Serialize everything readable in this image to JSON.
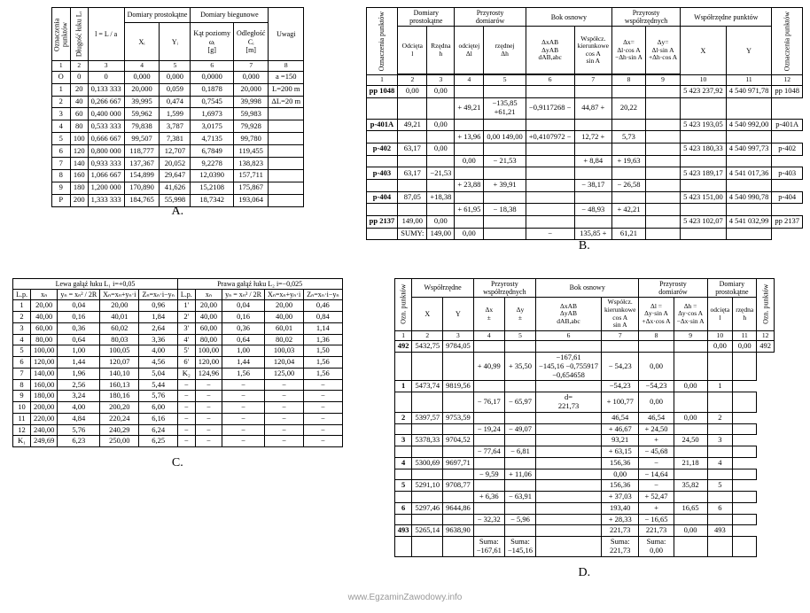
{
  "footer": "www.EgzaminZawodowy.info",
  "labels": {
    "A": "A.",
    "B": "B.",
    "C": "C.",
    "D": "D."
  },
  "A": {
    "head": {
      "ozn": "Oznaczenia\npunktów",
      "dlugosc": "Długość łuku Lᵢ",
      "l_formula": "l = L / a",
      "dom_prost": "Domiary prostokątne",
      "dom_bieg": "Domiary biegunowe",
      "X": "Xᵢ",
      "Y": "Yᵢ",
      "kat": "Kąt poziomy\nωᵢ\n[g]",
      "odl": "Odległość\nCᵢ\n[m]",
      "uwagi": "Uwagi"
    },
    "numrow": [
      "1",
      "2",
      "3",
      "4",
      "5",
      "6",
      "7",
      "8"
    ],
    "rows": [
      [
        "O",
        "0",
        "0",
        "0,000",
        "0,000",
        "0,0000",
        "0,000",
        "a =150"
      ],
      [
        "1",
        "20",
        "0,133 333",
        "20,000",
        "0,059",
        "0,1878",
        "20,000",
        "L=200 m"
      ],
      [
        "2",
        "40",
        "0,266 667",
        "39,995",
        "0,474",
        "0,7545",
        "39,998",
        "ΔL=20 m"
      ],
      [
        "3",
        "60",
        "0,400 000",
        "59,962",
        "1,599",
        "1,6973",
        "59,983",
        ""
      ],
      [
        "4",
        "80",
        "0,533 333",
        "79,838",
        "3,787",
        "3,0175",
        "79,928",
        ""
      ],
      [
        "5",
        "100",
        "0,666 667",
        "99,507",
        "7,381",
        "4,7135",
        "99,780",
        ""
      ],
      [
        "6",
        "120",
        "0,800 000",
        "118,777",
        "12,707",
        "6,7849",
        "119,455",
        ""
      ],
      [
        "7",
        "140",
        "0,933 333",
        "137,367",
        "20,052",
        "9,2278",
        "138,823",
        ""
      ],
      [
        "8",
        "160",
        "1,066 667",
        "154,899",
        "29,647",
        "12,0390",
        "157,711",
        ""
      ],
      [
        "9",
        "180",
        "1,200 000",
        "170,890",
        "41,626",
        "15,2108",
        "175,867",
        ""
      ],
      [
        "P",
        "200",
        "1,333 333",
        "184,765",
        "55,998",
        "18,7342",
        "193,064",
        ""
      ]
    ]
  },
  "B": {
    "head": {
      "ozn": "Oznaczenia punktów",
      "dom_prost": "Domiary\nprostokątne",
      "przy_dom": "Przyrosty\ndomiarów",
      "bok": "Bok osnowy",
      "przy_wsp": "Przyrosty\nwspółrzędnych",
      "wsp": "Współrzędne punktów",
      "odc": "Odcięta\nl",
      "rze": "Rzędna\nh",
      "dodc": "odciętej\nΔl",
      "drze": "rzędnej\nΔh",
      "dxab": "ΔxAB\nΔyAB\ndAB,abc",
      "wspk": "Współcz.\nkierunkowe\ncos A\nsin A",
      "dx": "Δx=\nΔl·cos A\n−Δh·sin A",
      "dy": "Δy=\nΔl·sin A\n+Δh·cos A",
      "X": "X",
      "Y": "Y"
    },
    "numrow": [
      "1",
      "2",
      "3",
      "4",
      "5",
      "6",
      "7",
      "8",
      "9",
      "10",
      "11",
      "12"
    ],
    "rows": [
      [
        "pp 1048",
        "0,00",
        "0,00",
        "",
        "",
        "",
        "",
        "",
        "",
        "5 423 237,92",
        "4 540 971,78",
        "pp 1048"
      ],
      [
        "",
        "",
        "",
        "+",
        "49,21",
        "",
        "−135,85\n+61,21",
        "−0,9117268",
        "−",
        "44,87",
        "+",
        "20,22",
        "",
        "",
        ""
      ],
      [
        "p-401A",
        "49,21",
        "0,00",
        "",
        "",
        "",
        "",
        "",
        "",
        "5 423 193,05",
        "4 540 992,00",
        "p-401A"
      ],
      [
        "",
        "",
        "",
        "+",
        "13,96",
        "0,00",
        "149,00",
        "+0,4107972",
        "−",
        "12,72",
        "+",
        "5,73",
        "",
        "",
        ""
      ],
      [
        "p-402",
        "63,17",
        "0,00",
        "",
        "",
        "",
        "",
        "",
        "",
        "5 423 180,33",
        "4 540 997,73",
        "p-402"
      ],
      [
        "",
        "",
        "",
        "",
        "0,00",
        "−",
        "21,53",
        "",
        "",
        "+",
        "8,84",
        "+",
        "19,63",
        "",
        "",
        ""
      ],
      [
        "p-403",
        "63,17",
        "−21,53",
        "",
        "",
        "",
        "",
        "",
        "",
        "5 423 189,17",
        "4 541 017,36",
        "p-403"
      ],
      [
        "",
        "",
        "",
        "+",
        "23,88",
        "+",
        "39,91",
        "",
        "",
        "−",
        "38,17",
        "−",
        "26,58",
        "",
        "",
        ""
      ],
      [
        "p-404",
        "87,05",
        "+18,38",
        "",
        "",
        "",
        "",
        "",
        "",
        "5 423 151,00",
        "4 540 990,78",
        "p-404"
      ],
      [
        "",
        "",
        "",
        "+",
        "61,95",
        "−",
        "18,38",
        "",
        "",
        "−",
        "48,93",
        "+",
        "42,21",
        "",
        "",
        ""
      ],
      [
        "pp 2137",
        "149,00",
        "0,00",
        "",
        "",
        "",
        "",
        "",
        "",
        "5 423 102,07",
        "4 541 032,99",
        "pp 2137"
      ],
      [
        "",
        "SUMY:",
        "149,00",
        "0,00",
        "",
        "",
        "",
        "",
        "−",
        "135,85",
        "+",
        "61,21",
        "",
        "",
        ""
      ]
    ]
  },
  "C": {
    "head": {
      "lewa": "Lewa gałąź łuku L₁   i=+0,05",
      "prawa": "Prawa gałąź łuku L₂   i=−0,025",
      "lp": "L.p.",
      "xn": "xₙ",
      "yn": "yₙ = xₙ² / 2R",
      "Xn": "Xₙ=xₙ+yₙ·i",
      "Zn": "Zₙ=xₙ·i−yₙ"
    },
    "rows": [
      [
        "1",
        "20,00",
        "0,04",
        "20,00",
        "0,96",
        "1'",
        "20,00",
        "0,04",
        "20,00",
        "0,46"
      ],
      [
        "2",
        "40,00",
        "0,16",
        "40,01",
        "1,84",
        "2'",
        "40,00",
        "0,16",
        "40,00",
        "0,84"
      ],
      [
        "3",
        "60,00",
        "0,36",
        "60,02",
        "2,64",
        "3'",
        "60,00",
        "0,36",
        "60,01",
        "1,14"
      ],
      [
        "4",
        "80,00",
        "0,64",
        "80,03",
        "3,36",
        "4'",
        "80,00",
        "0,64",
        "80,02",
        "1,36"
      ],
      [
        "5",
        "100,00",
        "1,00",
        "100,05",
        "4,00",
        "5'",
        "100,00",
        "1,00",
        "100,03",
        "1,50"
      ],
      [
        "6",
        "120,00",
        "1,44",
        "120,07",
        "4,56",
        "6'",
        "120,00",
        "1,44",
        "120,04",
        "1,56"
      ],
      [
        "7",
        "140,00",
        "1,96",
        "140,10",
        "5,04",
        "K₂",
        "124,96",
        "1,56",
        "125,00",
        "1,56"
      ],
      [
        "8",
        "160,00",
        "2,56",
        "160,13",
        "5,44",
        "−",
        "−",
        "−",
        "−",
        "−"
      ],
      [
        "9",
        "180,00",
        "3,24",
        "180,16",
        "5,76",
        "−",
        "−",
        "−",
        "−",
        "−"
      ],
      [
        "10",
        "200,00",
        "4,00",
        "200,20",
        "6,00",
        "−",
        "−",
        "−",
        "−",
        "−"
      ],
      [
        "11",
        "220,00",
        "4,84",
        "220,24",
        "6,16",
        "−",
        "−",
        "−",
        "−",
        "−"
      ],
      [
        "12",
        "240,00",
        "5,76",
        "240,29",
        "6,24",
        "−",
        "−",
        "−",
        "−",
        "−"
      ],
      [
        "K₁",
        "249,69",
        "6,23",
        "250,00",
        "6,25",
        "−",
        "−",
        "−",
        "−",
        "−"
      ]
    ]
  },
  "D": {
    "head": {
      "ozn": "Ozn. punktów",
      "wsp": "Współrzędne",
      "przy_wsp": "Przyrosty\nwspółrzędnych",
      "bok": "Bok osnowy",
      "przy_dom": "Przyrosty\ndomiarów",
      "dom_prost": "Domiary\nprostokątne",
      "X": "X",
      "Y": "Y",
      "dx": "Δx\n±",
      "dy": "Δy\n±",
      "dxab": "ΔxAB\nΔyAB\ndAB,abc",
      "wspk": "Współcz.\nkierunkowe\ncos A\nsin A",
      "dl": "Δl =\nΔy·sin A\n+Δx·cos A",
      "dh": "Δh =\nΔy·cos A\n−Δx·sin A",
      "odc": "odcięta\nl",
      "rze": "rzędna\nh"
    },
    "numrow": [
      "1",
      "2",
      "3",
      "4",
      "5",
      "6",
      "7",
      "8",
      "9",
      "10",
      "11",
      "12"
    ],
    "rows": [
      [
        "492",
        "5432,75",
        "9784,05",
        "",
        "",
        "",
        "",
        "",
        "",
        "0,00",
        "0,00",
        "492"
      ],
      [
        "",
        "",
        "",
        "+",
        "40,99",
        "+",
        "35,50",
        "−167,61\n−145,16",
        "−0,755917\n−0,654658",
        "−",
        "54,23",
        "0,00",
        "",
        "",
        ""
      ],
      [
        "1",
        "5473,74",
        "9819,56",
        "",
        "",
        "",
        "",
        "",
        "",
        "",
        "−54,23",
        "0,00",
        "1"
      ],
      [
        "",
        "",
        "",
        "−",
        "76,17",
        "−",
        "65,97",
        "d=\n221,73",
        "",
        "+",
        "100,77",
        "0,00",
        "",
        "",
        ""
      ],
      [
        "2",
        "5397,57",
        "9753,59",
        "",
        "",
        "",
        "",
        "",
        "",
        "",
        "46,54",
        "0,00",
        "2"
      ],
      [
        "",
        "",
        "",
        "−",
        "19,24",
        "−",
        "49,07",
        "",
        "",
        "+",
        "46,67",
        "+",
        "24,50",
        "",
        "",
        ""
      ],
      [
        "3",
        "5378,33",
        "9704,52",
        "",
        "",
        "",
        "",
        "",
        "",
        "",
        "93,21",
        "+",
        "24,50",
        "3"
      ],
      [
        "",
        "",
        "",
        "−",
        "77,64",
        "−",
        "6,81",
        "",
        "",
        "+",
        "63,15",
        "−",
        "45,68",
        "",
        "",
        ""
      ],
      [
        "4",
        "5300,69",
        "9697,71",
        "",
        "",
        "",
        "",
        "",
        "",
        "",
        "156,36",
        "−",
        "21,18",
        "4"
      ],
      [
        "",
        "",
        "",
        "−",
        "9,59",
        "+",
        "11,06",
        "",
        "",
        "",
        "0,00",
        "−",
        "14,64",
        "",
        "",
        ""
      ],
      [
        "5",
        "5291,10",
        "9708,77",
        "",
        "",
        "",
        "",
        "",
        "",
        "",
        "156,36",
        "−",
        "35,82",
        "5"
      ],
      [
        "",
        "",
        "",
        "+",
        "6,36",
        "−",
        "63,91",
        "",
        "",
        "+",
        "37,03",
        "+",
        "52,47",
        "",
        "",
        ""
      ],
      [
        "6",
        "5297,46",
        "9644,86",
        "",
        "",
        "",
        "",
        "",
        "",
        "",
        "193,40",
        "+",
        "16,65",
        "6"
      ],
      [
        "",
        "",
        "",
        "−",
        "32,32",
        "−",
        "5,96",
        "",
        "",
        "+",
        "28,33",
        "−",
        "16,65",
        "",
        "",
        ""
      ],
      [
        "493",
        "5265,14",
        "9638,90",
        "",
        "",
        "",
        "",
        "",
        "",
        "",
        "221,73",
        "0,00",
        "493"
      ],
      [
        "",
        "",
        "",
        "",
        "Suma:\n−167,61",
        "",
        "Suma:\n−145,16",
        "",
        "",
        "",
        "Suma:\n221,73",
        "",
        "Suma:\n0,00",
        "",
        "",
        ""
      ]
    ]
  }
}
